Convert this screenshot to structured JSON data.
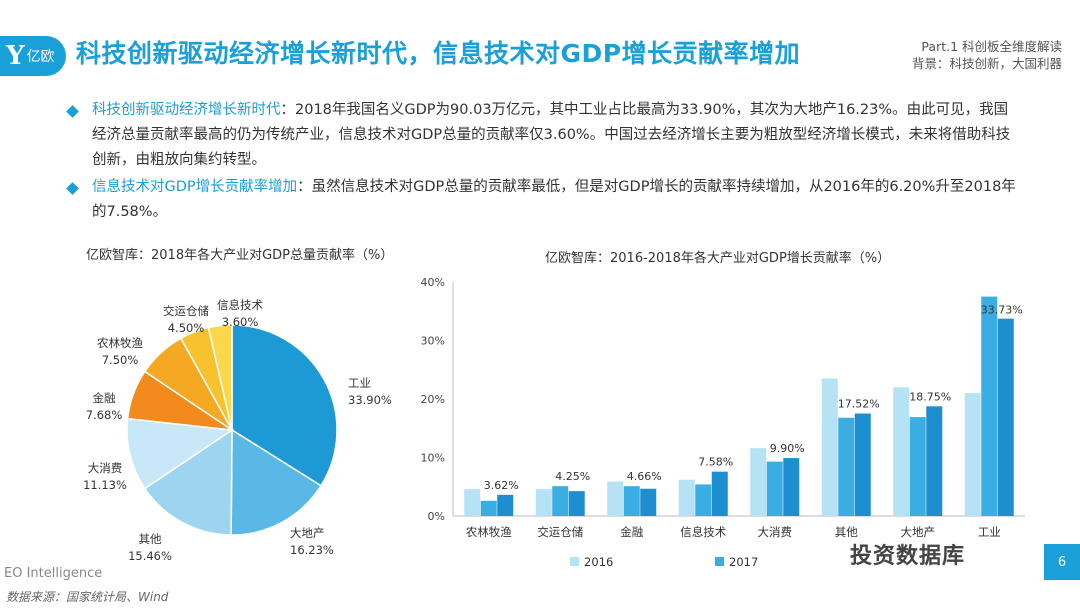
{
  "header": {
    "logo_mark": "Y",
    "logo_text": "亿欧",
    "title": "科技创新驱动经济增长新时代，信息技术对GDP增长贡献率增加",
    "part_line": "Part.1  科创板全维度解读",
    "sub_line": "背景：科技创新，大国利器"
  },
  "bullets": [
    {
      "highlight": "科技创新驱动经济增长新时代",
      "text": "：2018年我国名义GDP为90.03万亿元，其中工业占比最高为33.90%，其次为大地产16.23%。由此可见，我国经济总量贡献率最高的仍为传统产业，信息技术对GDP总量的贡献率仅3.60%。中国过去经济增长主要为粗放型经济增长模式，未来将借助科技创新，由粗放向集约转型。"
    },
    {
      "highlight": "信息技术对GDP增长贡献率增加",
      "text": "：虽然信息技术对GDP总量的贡献率最低，但是对GDP增长的贡献率持续增加，从2016年的6.20%升至2018年的7.58%。"
    }
  ],
  "footer": {
    "brand": "EO Intelligence",
    "source": "数据来源：国家统计局、Wind",
    "watermark": "投资数据库",
    "page": "6"
  },
  "chart_data": [
    {
      "type": "pie",
      "title": "亿欧智库：2018年各大产业对GDP总量贡献率（%）",
      "slices": [
        {
          "label": "工业",
          "value": 33.9,
          "display": "33.90%",
          "color": "#1d9ad6"
        },
        {
          "label": "大地产",
          "value": 16.23,
          "display": "16.23%",
          "color": "#5ab8e6"
        },
        {
          "label": "其他",
          "value": 15.46,
          "display": "15.46%",
          "color": "#9dd5f1"
        },
        {
          "label": "大消费",
          "value": 11.13,
          "display": "11.13%",
          "color": "#c8e8f7"
        },
        {
          "label": "金融",
          "value": 7.68,
          "display": "7.68%",
          "color": "#f28a1e"
        },
        {
          "label": "农林牧渔",
          "value": 7.5,
          "display": "7.50%",
          "color": "#f5a823"
        },
        {
          "label": "交运仓储",
          "value": 4.5,
          "display": "4.50%",
          "color": "#f8c22e"
        },
        {
          "label": "信息技术",
          "value": 3.6,
          "display": "3.60%",
          "color": "#fbd74a"
        }
      ]
    },
    {
      "type": "bar",
      "title": "亿欧智库：2016-2018年各大产业对GDP增长贡献率（%）",
      "categories": [
        "农林牧渔",
        "交运仓储",
        "金融",
        "信息技术",
        "大消费",
        "其他",
        "大地产",
        "工业"
      ],
      "ylim": [
        0,
        40
      ],
      "yticks": [
        "0%",
        "10%",
        "20%",
        "30%",
        "40%"
      ],
      "series": [
        {
          "name": "2016",
          "color": "#b5e3f5",
          "values": [
            4.6,
            4.6,
            5.9,
            6.2,
            11.6,
            23.5,
            22.0,
            21.0
          ]
        },
        {
          "name": "2017",
          "color": "#3aaee3",
          "values": [
            2.6,
            5.1,
            5.1,
            5.4,
            9.3,
            16.8,
            16.9,
            37.5
          ]
        },
        {
          "name": "",
          "color": "#1d8fd0",
          "values": [
            3.62,
            4.25,
            4.66,
            7.58,
            9.9,
            17.52,
            18.75,
            33.73
          ]
        }
      ],
      "data_labels": [
        "3.62%",
        "4.25%",
        "4.66%",
        "7.58%",
        "9.90%",
        "17.52%",
        "18.75%",
        "33.73%"
      ],
      "legend": [
        "2016",
        "2017"
      ]
    }
  ]
}
